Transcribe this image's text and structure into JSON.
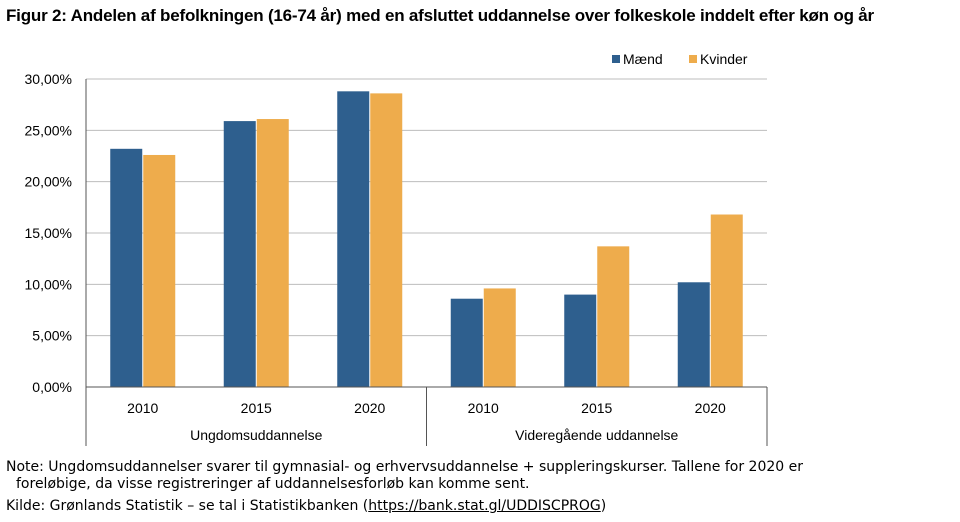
{
  "title": "Figur 2: Andelen af befolkningen (16-74 år) med en afsluttet uddannelse over folkeskole inddelt efter køn og år",
  "note_line1": "Note: Ungdomsuddannelser svarer til gymnasial- og erhvervsuddannelse + suppleringskurser. Tallene for 2020 er",
  "note_line2": "foreløbige, da visse registreringer af uddannelsesforløb kan komme sent.",
  "source_prefix": "Kilde: Grønlands Statistik – se tal i Statistikbanken (",
  "source_link": "https://bank.stat.gl/UDDISCPROG",
  "source_suffix": ")",
  "chart_data": {
    "type": "bar",
    "title": "",
    "xlabel": "",
    "ylabel": "",
    "ylim": [
      0,
      30
    ],
    "yticks": [
      "0,00%",
      "5,00%",
      "10,00%",
      "15,00%",
      "20,00%",
      "25,00%",
      "30,00%"
    ],
    "ytick_values": [
      0,
      5,
      10,
      15,
      20,
      25,
      30
    ],
    "grid": true,
    "legend_position": "top-right",
    "groups": [
      {
        "label": "Ungdomsuddannelse",
        "categories": [
          "2010",
          "2015",
          "2020"
        ]
      },
      {
        "label": "Videregående uddannelse",
        "categories": [
          "2010",
          "2015",
          "2020"
        ]
      }
    ],
    "series": [
      {
        "name": "Mænd",
        "color": "#2e5f8e",
        "values": [
          23.2,
          25.9,
          28.8,
          8.6,
          9.0,
          10.2
        ]
      },
      {
        "name": "Kvinder",
        "color": "#eeac4c",
        "values": [
          22.6,
          26.1,
          28.6,
          9.6,
          13.7,
          16.8
        ]
      }
    ]
  }
}
